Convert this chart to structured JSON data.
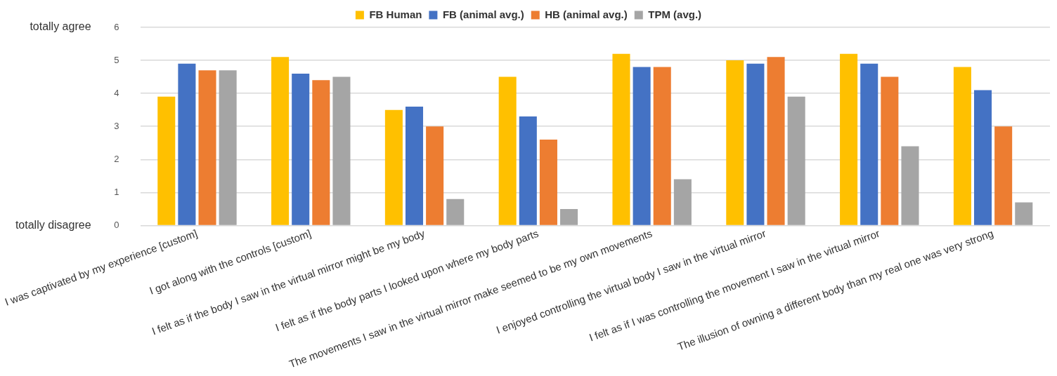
{
  "chart_data": {
    "type": "bar",
    "categories": [
      "I was captivated by my experience [custom]",
      "I got along with the controls [custom]",
      "I felt as if the body I saw in the virtual mirror might be my body",
      "I felt as if the body parts I looked upon where my body parts",
      "The movements I saw in the virtual mirror make seemed to be my own movements",
      "I enjoyed controlling the virtual body I saw in the virtual mirror",
      "I felt as if I was controlling the movement I saw in the virtual mirror",
      "The illusion of owning a different body than my real one was very strong"
    ],
    "series": [
      {
        "name": "FB Human",
        "color": "#ffc000",
        "values": [
          3.9,
          5.1,
          3.5,
          4.5,
          5.2,
          5.0,
          5.2,
          4.8
        ]
      },
      {
        "name": "FB (animal avg.)",
        "color": "#4472c4",
        "values": [
          4.9,
          4.6,
          3.6,
          3.3,
          4.8,
          4.9,
          4.9,
          4.1
        ]
      },
      {
        "name": "HB (animal avg.)",
        "color": "#ed7d31",
        "values": [
          4.7,
          4.4,
          3.0,
          2.6,
          4.8,
          5.1,
          4.5,
          3.0
        ]
      },
      {
        "name": "TPM (avg.)",
        "color": "#a5a5a5",
        "values": [
          4.7,
          4.5,
          0.8,
          0.5,
          1.4,
          3.9,
          2.4,
          0.7
        ]
      }
    ],
    "ylim": [
      0,
      6
    ],
    "yticks": [
      0,
      1,
      2,
      3,
      4,
      5,
      6
    ],
    "grid": "y",
    "legend": "top",
    "annotations": [
      "totally agree",
      "totally disagree"
    ]
  }
}
